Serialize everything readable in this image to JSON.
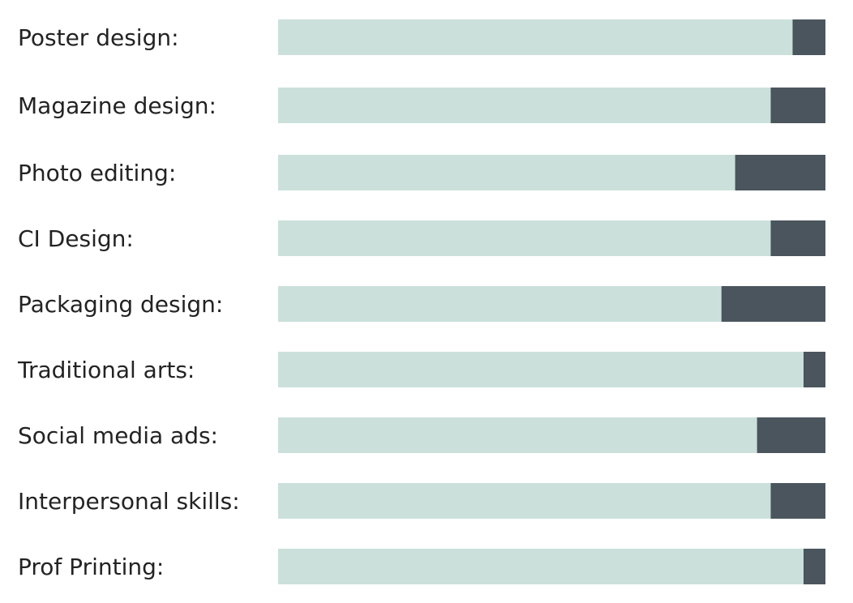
{
  "colors": {
    "track": "#cbe0db",
    "remainder": "#4b555e",
    "text": "#232323",
    "background": "#ffffff"
  },
  "chart_data": {
    "type": "bar",
    "orientation": "horizontal",
    "stacked": true,
    "categories": [
      "Poster design:",
      "Magazine design:",
      "Photo editing:",
      "CI Design:",
      "Packaging design:",
      "Traditional arts:",
      "Social media ads:",
      "Interpersonal skills:",
      "Prof Printing:"
    ],
    "series": [
      {
        "values": [
          94,
          90,
          83.5,
          90,
          81,
          96,
          87.5,
          90,
          96
        ]
      },
      {
        "values": [
          6,
          10,
          16.5,
          10,
          19,
          4,
          12.5,
          10,
          4
        ]
      }
    ],
    "xlim": [
      0,
      100
    ],
    "grid": false,
    "legend": "none"
  }
}
